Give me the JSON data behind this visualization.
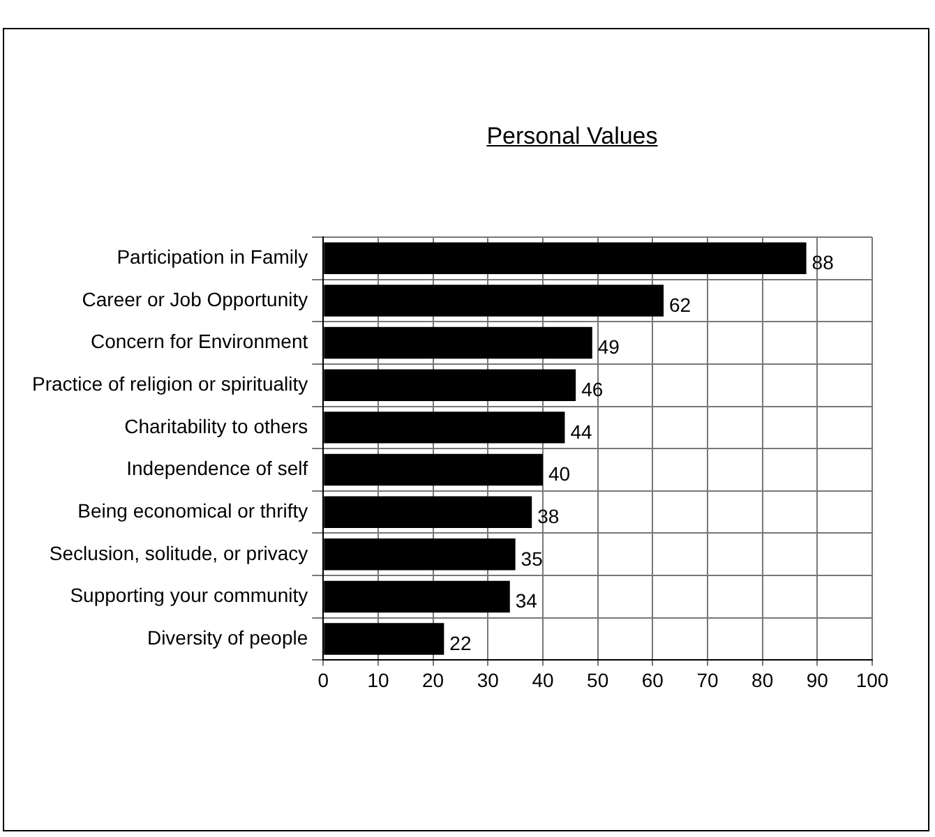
{
  "chart_data": {
    "type": "bar",
    "orientation": "horizontal",
    "title": "Personal Values",
    "categories": [
      "Participation in Family",
      "Career or Job Opportunity",
      "Concern for Environment",
      "Practice of religion or spirituality",
      "Charitability to others",
      "Independence of self",
      "Being economical or thrifty",
      "Seclusion, solitude, or privacy",
      "Supporting your community",
      "Diversity of people"
    ],
    "values": [
      88,
      62,
      49,
      46,
      44,
      40,
      38,
      35,
      34,
      22
    ],
    "color": "#000000",
    "xlim": [
      0,
      100
    ],
    "xticks": [
      0,
      10,
      20,
      30,
      40,
      50,
      60,
      70,
      80,
      90,
      100
    ],
    "grid": true,
    "data_labels": true,
    "legend": false
  }
}
